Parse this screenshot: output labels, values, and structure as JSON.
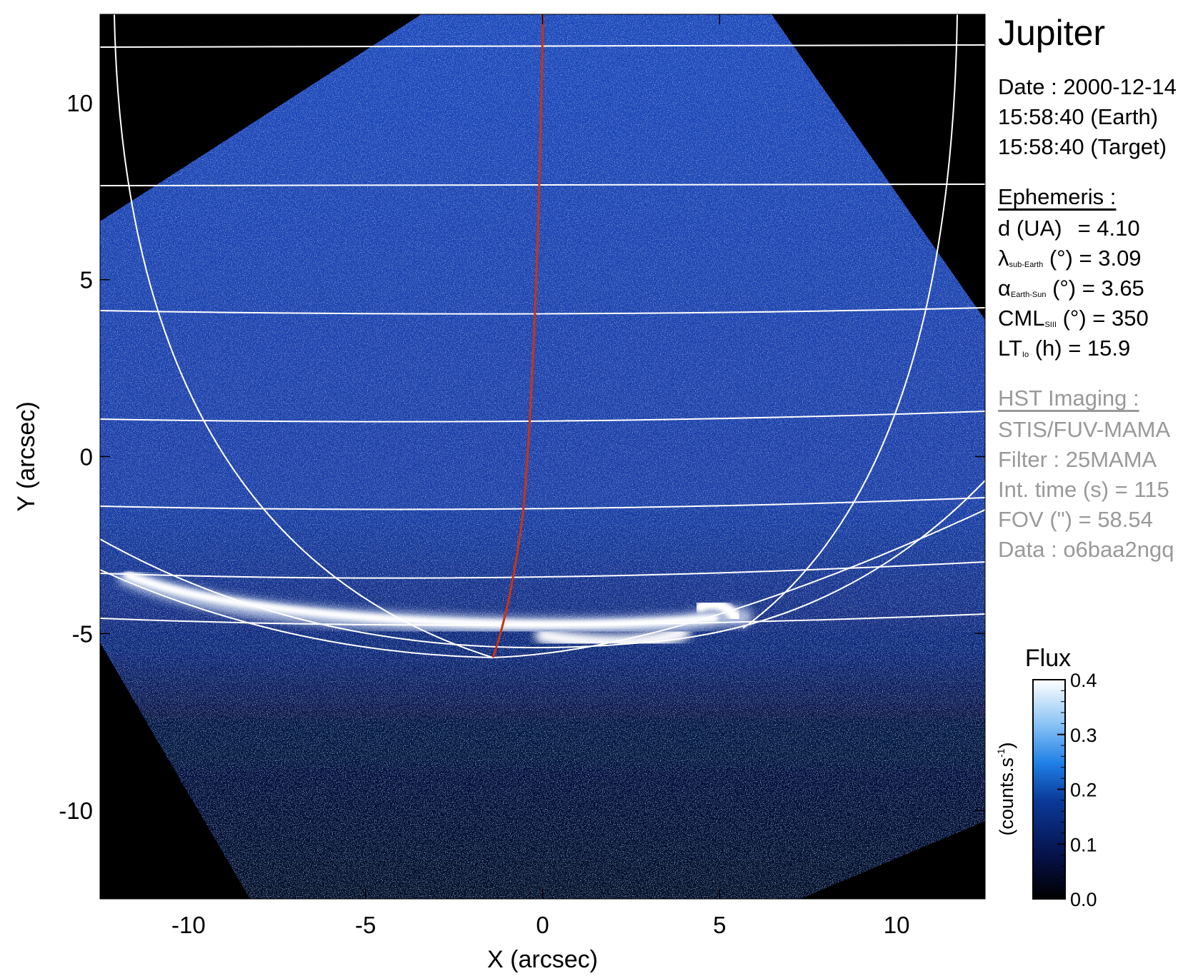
{
  "title": "Jupiter",
  "date": {
    "line1": "Date : 2000-12-14",
    "line2": "15:58:40 (Earth)",
    "line3": "15:58:40 (Target)"
  },
  "ephemeris": {
    "header": "Ephemeris :",
    "d": {
      "name": "d (UA)",
      "value": "= 4.10"
    },
    "lambda": {
      "symbol": "λ",
      "sub": "sub-Earth",
      "unit": "(°)",
      "value": "= 3.09"
    },
    "alpha": {
      "symbol": "α",
      "sub": "Earth-Sun",
      "unit": "(°)",
      "value": "= 3.65"
    },
    "cml": {
      "symbol": "CML",
      "sub": "SIII",
      "unit": "(°)",
      "value": "= 350"
    },
    "lt": {
      "symbol": "LT",
      "sub": "Io",
      "unit": "(h)",
      "value": "= 15.9"
    }
  },
  "hst": {
    "header": "HST Imaging :",
    "instrument": "STIS/FUV-MAMA",
    "filter": "Filter : 25MAMA",
    "int_time": "Int. time (s) = 115",
    "fov": "FOV (\") = 58.54",
    "data_id": "Data : o6baa2ngq"
  },
  "colors": {
    "background": "#000000",
    "disk": "#1c45b4",
    "grid": "#ffffff",
    "meridian": "#cc3311",
    "aurora": "#ffffff",
    "gray_text": "#999999"
  },
  "colorbar": {
    "title": "Flux",
    "label": "(counts.s",
    "label_exp": "-1",
    "label_end": ")",
    "ticks": [
      "0.4",
      "0.3",
      "0.2",
      "0.1",
      "0.0"
    ],
    "tick_values": [
      0.4,
      0.3,
      0.2,
      0.1,
      0.0
    ],
    "range": [
      0.0,
      0.4
    ]
  },
  "chart_data": {
    "type": "heatmap",
    "xlabel": "X (arcsec)",
    "ylabel": "Y (arcsec)",
    "xlim": [
      -12.5,
      12.5
    ],
    "ylim": [
      -12.5,
      12.5
    ],
    "x_ticks": [
      -10,
      -5,
      0,
      5,
      10
    ],
    "y_ticks": [
      10,
      5,
      0,
      -5,
      -10
    ],
    "x_tick_labels": [
      "-10",
      "-5",
      "0",
      "5",
      "10"
    ],
    "y_tick_labels": [
      "10",
      "5",
      "0",
      "-5",
      "-10"
    ],
    "colorscale": "blue-white",
    "grid": true
  }
}
